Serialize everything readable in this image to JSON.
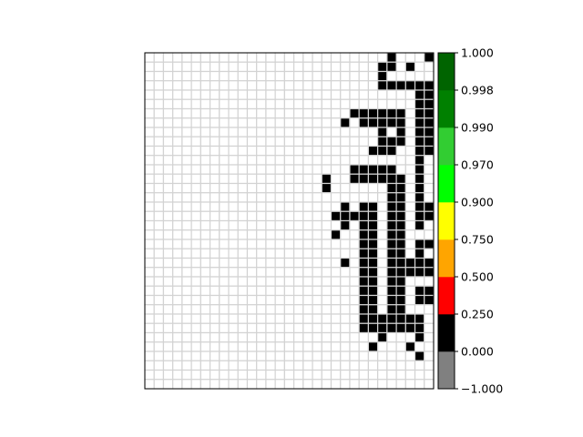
{
  "chart_data": {
    "type": "heatmap",
    "title": "",
    "xlabel": "",
    "ylabel": "",
    "grid": true,
    "n_rows": 36,
    "n_cols": 31,
    "cell_fill_colors": {
      "0": "#ffffff",
      "1": "#000000"
    },
    "grid_line_color": "#d3d3d3",
    "cells": [
      "0000000000000000000000000010001",
      "0000000000000000000000000110100",
      "0000000000000000000000000100000",
      "0000000000000000000000000111111",
      "0000000000000000000000000000011",
      "0000000000000000000000000000011",
      "0000000000000000000000111111011",
      "0000000000000000000001011111011",
      "0000000000000000000000000101011",
      "0000000000000000000000000111011",
      "0000000000000000000000001110011",
      "0000000000000000000000000000010",
      "0000000000000000000000111110010",
      "0000000000000000000100111111010",
      "0000000000000000000100000011010",
      "0000000000000000000000000011010",
      "0000000000000000000001011011011",
      "0000000000000000000011111011011",
      "0000000000000000000001011011010",
      "0000000000000000000010011011000",
      "0000000000000000000000011011011",
      "0000000000000000000000011011010",
      "0000000000000000000001011011111",
      "0000000000000000000000011011111",
      "0000000000000000000000011011000",
      "0000000000000000000000011011011",
      "0000000000000000000000011011011",
      "0000000000000000000000011011000",
      "0000000000000000000000011111110",
      "0000000000000000000000011111110",
      "0000000000000000000000000100010",
      "0000000000000000000000001000100",
      "0000000000000000000000000000010",
      "0000000000000000000000000000000",
      "0000000000000000000000000000000",
      "0000000000000000000000000000000"
    ],
    "colorbar": {
      "tick_labels": [
        "−1.000",
        "0.000",
        "0.250",
        "0.500",
        "0.750",
        "0.900",
        "0.970",
        "0.990",
        "0.998",
        "1.000"
      ],
      "bands": [
        {
          "from": "−1.000",
          "to": "0.000",
          "color": "#808080"
        },
        {
          "from": "0.000",
          "to": "0.250",
          "color": "#000000"
        },
        {
          "from": "0.250",
          "to": "0.500",
          "color": "#ff0000"
        },
        {
          "from": "0.500",
          "to": "0.750",
          "color": "#ffa500"
        },
        {
          "from": "0.750",
          "to": "0.900",
          "color": "#ffff00"
        },
        {
          "from": "0.900",
          "to": "0.970",
          "color": "#00ff00"
        },
        {
          "from": "0.970",
          "to": "0.990",
          "color": "#32cd32"
        },
        {
          "from": "0.990",
          "to": "0.998",
          "color": "#008000"
        },
        {
          "from": "0.998",
          "to": "1.000",
          "color": "#006400"
        }
      ]
    }
  }
}
